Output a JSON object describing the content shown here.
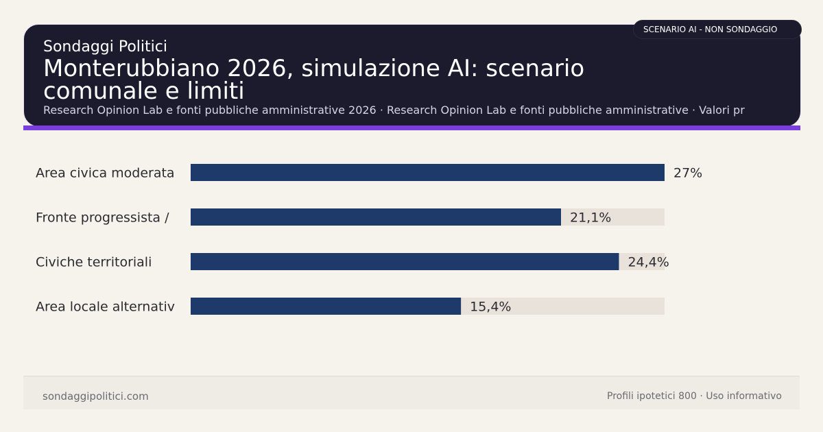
{
  "header": {
    "kicker": "Sondaggi Politici",
    "title": "Monterubbiano 2026, simulazione AI: scenario comunale e limiti",
    "subtitle": "Research Opinion Lab e fonti pubbliche amministrative 2026 · Research Opinion Lab e fonti pubbliche amministrative · Valori pr",
    "badge": "SCENARIO AI - NON SONDAGGIO"
  },
  "colors": {
    "header_bg": "#1c1b2e",
    "accent": "#7a3ee0",
    "bar": "#1e3a6b",
    "track": "#e8e2da",
    "background": "#f6f3ec"
  },
  "chart_data": {
    "type": "bar",
    "orientation": "horizontal",
    "categories": [
      "Area civica moderata",
      "Fronte progressista /",
      "Civiche territoriali",
      "Area locale alternativ"
    ],
    "values": [
      27,
      21.1,
      24.4,
      15.4
    ],
    "value_labels": [
      "27%",
      "21,1%",
      "24,4%",
      "15,4%"
    ],
    "xlim": [
      0,
      27
    ],
    "title": "",
    "xlabel": "",
    "ylabel": "",
    "grid": false,
    "legend": "none"
  },
  "footer": {
    "left": "sondaggipolitici.com",
    "right": "Profili ipotetici 800 · Uso informativo"
  }
}
